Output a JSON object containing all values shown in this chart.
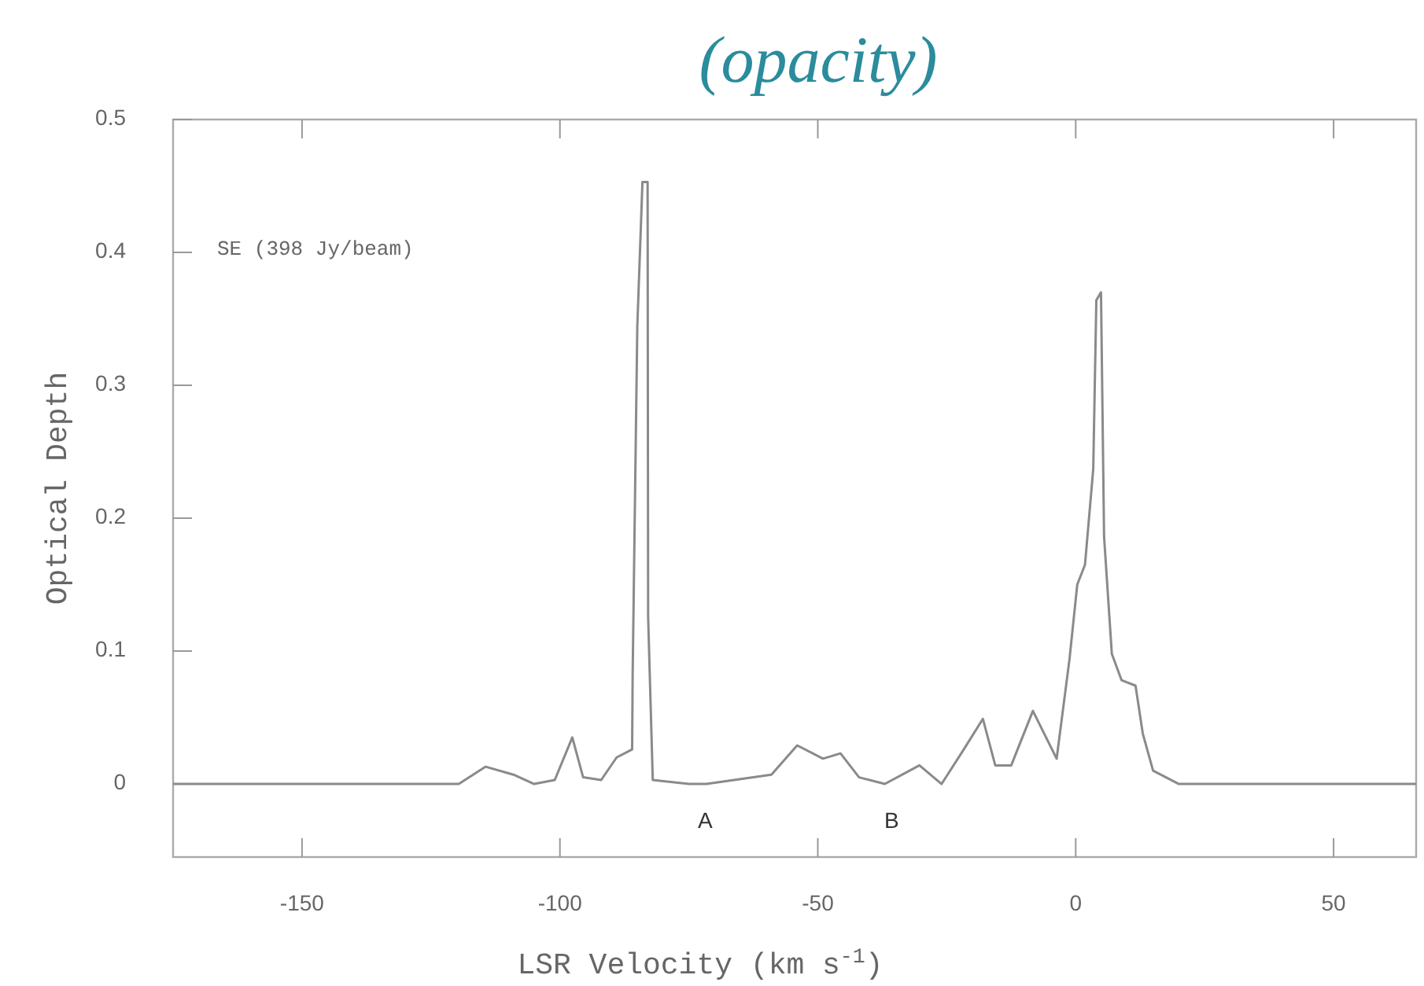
{
  "chart_data": {
    "type": "line",
    "title": "(opacity)",
    "xlabel": "LSR Velocity (km s$^{-1}$)",
    "ylabel": "Optical Depth",
    "annotations": [
      "SE (398 Jy/beam)",
      "A",
      "B"
    ],
    "x": [
      -175,
      -150,
      -130,
      -119.6,
      -114.4,
      -109,
      -105,
      -101,
      -97.6,
      -95.5,
      -92,
      -89,
      -86,
      -85.9,
      -85,
      -84,
      -83,
      -82.9,
      -82,
      -75,
      -71.6,
      -59,
      -54,
      -49,
      -45.6,
      -42,
      -37,
      -30.3,
      -26,
      -21.7,
      -18,
      -15.6,
      -12.5,
      -8.3,
      -3.7,
      -1.2,
      0.3,
      1.8,
      3.4,
      4,
      4.9,
      5.5,
      7,
      8.9,
      11.6,
      13,
      15,
      20,
      40,
      66
    ],
    "series": [
      {
        "color": "#8a8a8a",
        "values": [
          0,
          0,
          0,
          0,
          0.013,
          0.007,
          0,
          0.003,
          0.035,
          0.005,
          0.003,
          0.02,
          0.026,
          0.082,
          0.344,
          0.453,
          0.453,
          0.126,
          0.003,
          0,
          0,
          0.007,
          0.029,
          0.019,
          0.023,
          0.005,
          0,
          0.014,
          0,
          0.026,
          0.049,
          0.014,
          0.014,
          0.055,
          0.019,
          0.094,
          0.15,
          0.165,
          0.237,
          0.364,
          0.37,
          0.186,
          0.098,
          0.078,
          0.074,
          0.038,
          0.01,
          0,
          0,
          0
        ]
      }
    ],
    "xlim": [
      -175,
      66
    ],
    "ylim": [
      -0.055,
      0.5
    ],
    "xticks": [
      -150,
      -100,
      -50,
      0,
      50
    ],
    "yticks": [
      0,
      0.1,
      0.2,
      0.3,
      0.4,
      0.5
    ],
    "grid": false,
    "marker": "none",
    "line_style": "solid"
  }
}
